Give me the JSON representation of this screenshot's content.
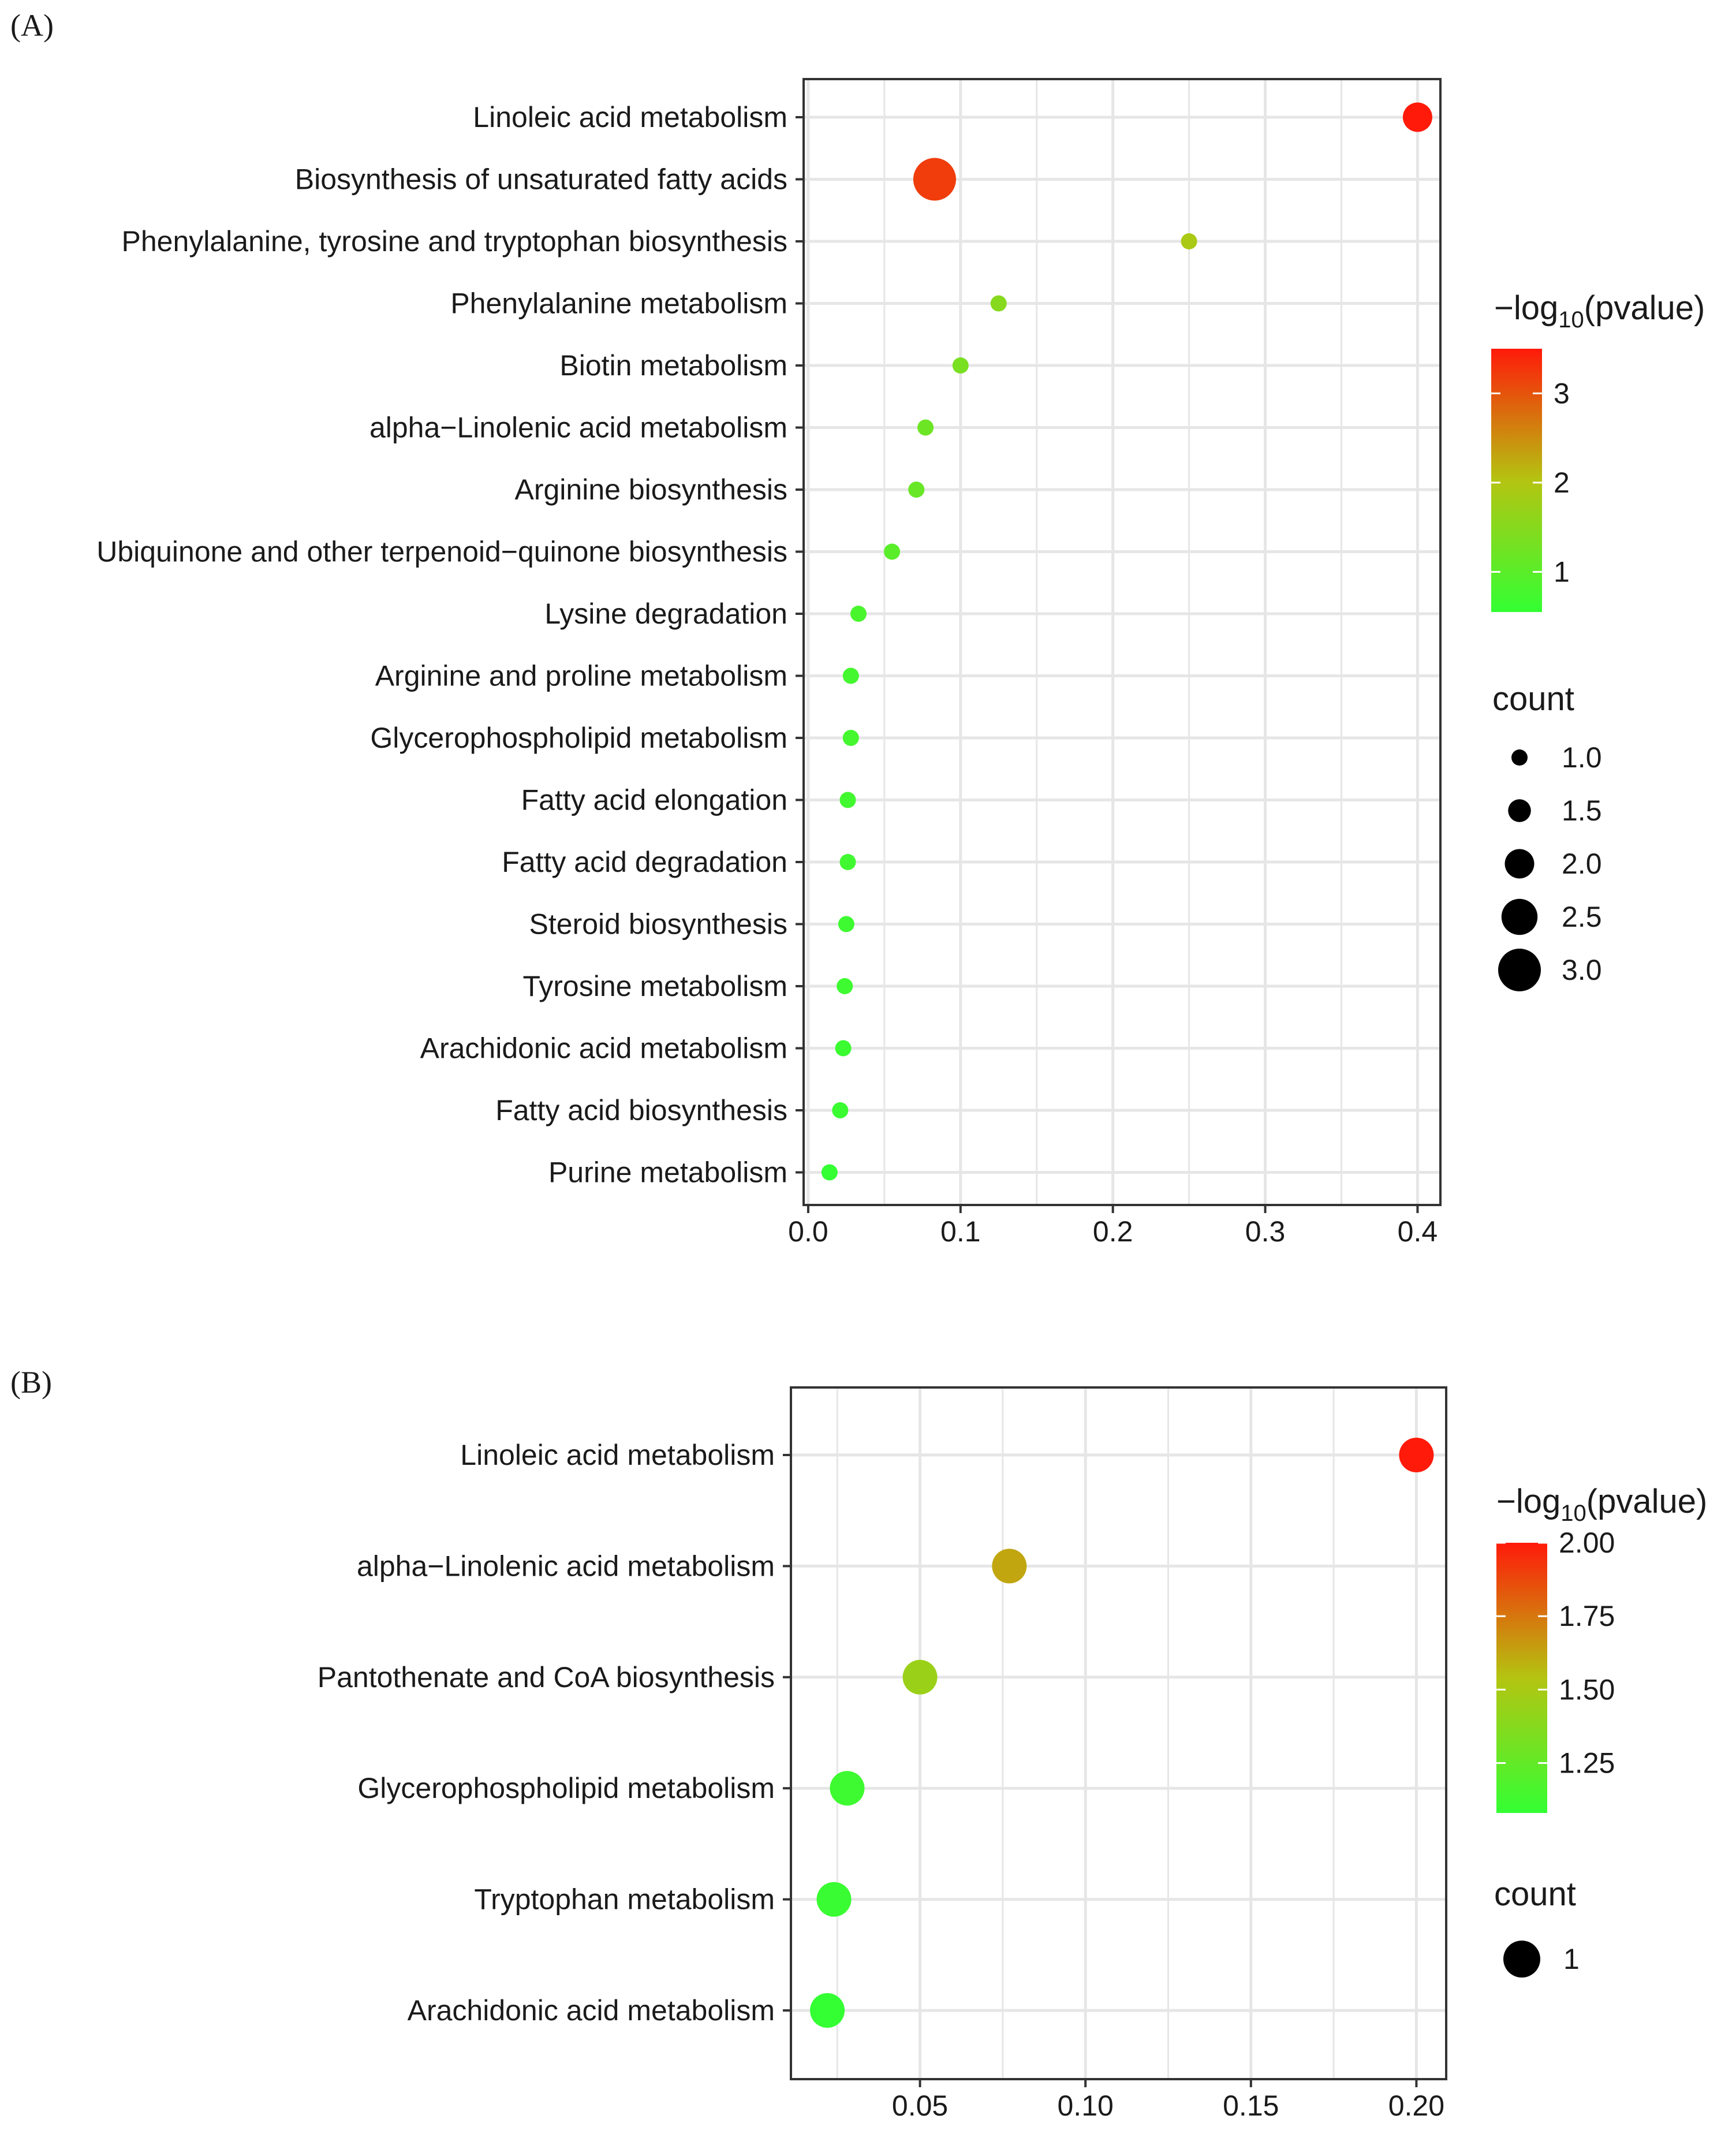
{
  "chart_data": [
    {
      "type": "scatter",
      "panel_label": "(A)",
      "title": "",
      "xlabel": "",
      "ylabel": "",
      "xlim": [
        -0.003,
        0.415
      ],
      "x_ticks": [
        0.0,
        0.1,
        0.2,
        0.3,
        0.4
      ],
      "x_tick_labels": [
        "0.0",
        "0.1",
        "0.2",
        "0.3",
        "0.4"
      ],
      "x_minor_ticks": [
        0.05,
        0.15,
        0.25,
        0.35
      ],
      "grid": true,
      "categories": [
        "Linoleic acid metabolism",
        "Biosynthesis of unsaturated fatty acids",
        "Phenylalanine, tyrosine and tryptophan biosynthesis",
        "Phenylalanine metabolism",
        "Biotin metabolism",
        "alpha−Linolenic acid metabolism",
        "Arginine biosynthesis",
        "Ubiquinone and other terpenoid−quinone biosynthesis",
        "Lysine degradation",
        "Arginine and proline metabolism",
        "Glycerophospholipid metabolism",
        "Fatty acid elongation",
        "Fatty acid degradation",
        "Steroid biosynthesis",
        "Tyrosine metabolism",
        "Arachidonic acid metabolism",
        "Fatty acid biosynthesis",
        "Purine metabolism"
      ],
      "x": [
        0.4,
        0.083,
        0.25,
        0.125,
        0.1,
        0.077,
        0.071,
        0.055,
        0.033,
        0.028,
        0.028,
        0.026,
        0.026,
        0.025,
        0.024,
        0.023,
        0.021,
        0.014
      ],
      "count": [
        2,
        3,
        1,
        1,
        1,
        1,
        1,
        1,
        1,
        1,
        1,
        1,
        1,
        1,
        1,
        1,
        1,
        1
      ],
      "neg_log10_pvalue": [
        3.5,
        3.2,
        1.9,
        1.5,
        1.35,
        1.2,
        1.15,
        1.0,
        0.8,
        0.75,
        0.74,
        0.72,
        0.7,
        0.68,
        0.66,
        0.64,
        0.62,
        0.55
      ],
      "color_legend": {
        "title": "−log",
        "subscript": "10",
        "title_suffix": "(pvalue)",
        "range": [
          0.55,
          3.5
        ],
        "ticks": [
          1,
          2,
          3
        ],
        "tick_labels": [
          "1",
          "2",
          "3"
        ]
      },
      "size_legend": {
        "title": "count",
        "values": [
          1.0,
          1.5,
          2.0,
          2.5,
          3.0
        ],
        "labels": [
          "1.0",
          "1.5",
          "2.0",
          "2.5",
          "3.0"
        ]
      },
      "colors": {
        "low": "#33ff33",
        "mid": "#b4c411",
        "high": "#ff1a0a",
        "grid": "#e6e6e6",
        "border": "#333333"
      }
    },
    {
      "type": "scatter",
      "panel_label": "(B)",
      "title": "",
      "xlabel": "",
      "ylabel": "",
      "xlim": [
        0.011,
        0.209
      ],
      "x_ticks": [
        0.05,
        0.1,
        0.15,
        0.2
      ],
      "x_tick_labels": [
        "0.05",
        "0.10",
        "0.15",
        "0.20"
      ],
      "x_minor_ticks": [
        0.025,
        0.075,
        0.125,
        0.175
      ],
      "grid": true,
      "categories": [
        "Linoleic acid metabolism",
        "alpha−Linolenic acid metabolism",
        "Pantothenate and CoA biosynthesis",
        "Glycerophospholipid metabolism",
        "Tryptophan metabolism",
        "Arachidonic acid metabolism"
      ],
      "x": [
        0.2,
        0.077,
        0.05,
        0.028,
        0.024,
        0.022
      ],
      "count": [
        1,
        1,
        1,
        1,
        1,
        1
      ],
      "neg_log10_pvalue": [
        2.0,
        1.62,
        1.45,
        1.12,
        1.1,
        1.08
      ],
      "color_legend": {
        "title": "−log",
        "subscript": "10",
        "title_suffix": "(pvalue)",
        "range": [
          1.08,
          2.0
        ],
        "ticks": [
          1.25,
          1.5,
          1.75,
          2.0
        ],
        "tick_labels": [
          "1.25",
          "1.50",
          "1.75",
          "2.00"
        ]
      },
      "size_legend": {
        "title": "count",
        "values": [
          1
        ],
        "labels": [
          "1"
        ]
      },
      "colors": {
        "low": "#33ff33",
        "mid": "#b4c411",
        "high": "#ff1a0a",
        "grid": "#e6e6e6",
        "border": "#333333"
      }
    }
  ]
}
